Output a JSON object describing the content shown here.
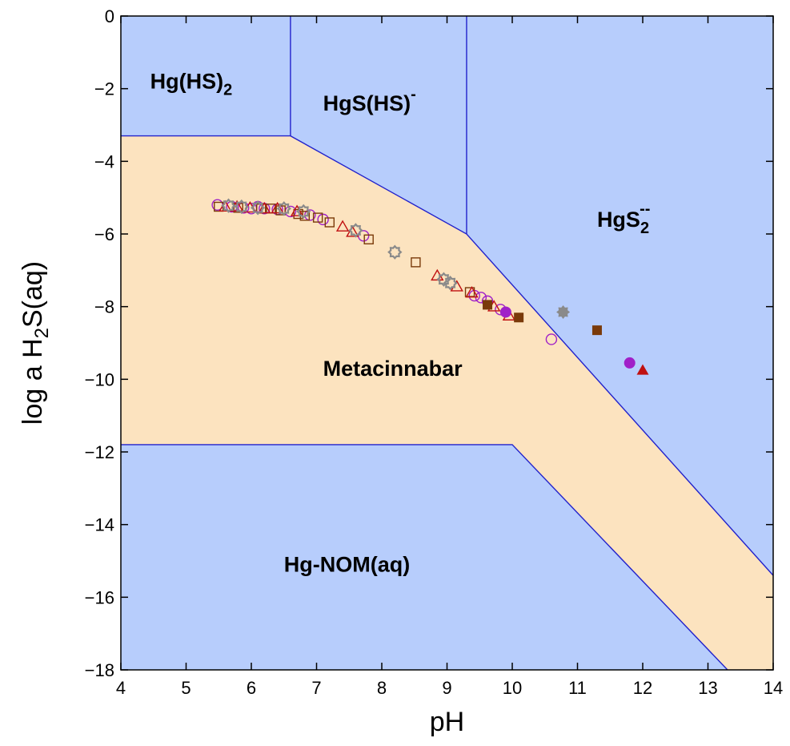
{
  "chart_data": {
    "type": "scatter",
    "xlabel": "pH",
    "ylabel": {
      "pre": "log a H",
      "sub": "2",
      "post": "S(aq)"
    },
    "xlim": [
      4,
      14
    ],
    "ylim": [
      -18,
      0
    ],
    "xticks": [
      4,
      5,
      6,
      7,
      8,
      9,
      10,
      11,
      12,
      13,
      14
    ],
    "yticks": [
      0,
      -2,
      -4,
      -6,
      -8,
      -10,
      -12,
      -14,
      -16,
      -18
    ],
    "tick_labels_x": [
      "4",
      "5",
      "6",
      "7",
      "8",
      "9",
      "10",
      "11",
      "12",
      "13",
      "14"
    ],
    "tick_labels_y": [
      "0",
      "−2",
      "−4",
      "−6",
      "−8",
      "−10",
      "−12",
      "−14",
      "−16",
      "−18"
    ],
    "colors": {
      "aqueous": "#b7cdfc",
      "solid": "#fce3bf",
      "boundary": "#2222cc",
      "gray": "#8a8a8a",
      "brown": "#7a3a0a",
      "magenta": "#a020c8",
      "red": "#c01010"
    },
    "regions": [
      {
        "name": "Hg(HS)2",
        "label": "Hg(HS)",
        "sub": "2",
        "sup": "",
        "kind": "aqueous",
        "label_at": [
          4.45,
          -2.0
        ],
        "polygon": [
          [
            4,
            0
          ],
          [
            6.6,
            0
          ],
          [
            6.6,
            -3.3
          ],
          [
            4,
            -3.3
          ]
        ]
      },
      {
        "name": "HgS(HS)-",
        "label": "HgS(HS)",
        "sub": "",
        "sup": "-",
        "kind": "aqueous",
        "label_at": [
          7.1,
          -2.6
        ],
        "polygon": [
          [
            6.6,
            0
          ],
          [
            9.3,
            0
          ],
          [
            9.3,
            -6.0
          ],
          [
            6.6,
            -3.3
          ]
        ]
      },
      {
        "name": "HgS2--",
        "label": "HgS",
        "sub": "2",
        "sup": "--",
        "kind": "aqueous",
        "label_at": [
          11.3,
          -5.8
        ],
        "polygon": [
          [
            9.3,
            0
          ],
          [
            14,
            0
          ],
          [
            14,
            -15.4
          ],
          [
            9.3,
            -6.0
          ]
        ]
      },
      {
        "name": "Metacinnabar",
        "label": "Metacinnabar",
        "sub": "",
        "sup": "",
        "kind": "solid",
        "label_at": [
          7.1,
          -9.9
        ],
        "polygon": [
          [
            4,
            -3.3
          ],
          [
            6.6,
            -3.3
          ],
          [
            9.3,
            -6.0
          ],
          [
            14,
            -15.4
          ],
          [
            14,
            -18
          ],
          [
            13.3,
            -18
          ],
          [
            10.0,
            -11.8
          ],
          [
            4,
            -11.8
          ]
        ]
      },
      {
        "name": "Hg-NOM(aq)",
        "label": "Hg-NOM(aq)",
        "sub": "",
        "sup": "",
        "kind": "aqueous",
        "label_at": [
          6.5,
          -15.3
        ],
        "polygon": [
          [
            4,
            -11.8
          ],
          [
            10.0,
            -11.8
          ],
          [
            13.3,
            -18
          ],
          [
            4,
            -18
          ]
        ]
      }
    ],
    "boundaries": [
      [
        [
          4,
          -3.3
        ],
        [
          6.6,
          -3.3
        ],
        [
          9.3,
          -6.0
        ],
        [
          14,
          -15.4
        ]
      ],
      [
        [
          6.6,
          0
        ],
        [
          6.6,
          -3.3
        ]
      ],
      [
        [
          9.3,
          0
        ],
        [
          9.3,
          -6.0
        ]
      ],
      [
        [
          4,
          -11.8
        ],
        [
          10.0,
          -11.8
        ],
        [
          13.3,
          -18
        ]
      ]
    ],
    "series": [
      {
        "marker": "circle",
        "filled": false,
        "color": "magenta",
        "points": [
          [
            5.48,
            -5.2
          ],
          [
            5.7,
            -5.25
          ],
          [
            5.88,
            -5.28
          ],
          [
            6.0,
            -5.3
          ],
          [
            6.1,
            -5.25
          ],
          [
            6.2,
            -5.3
          ],
          [
            6.4,
            -5.32
          ],
          [
            6.6,
            -5.38
          ],
          [
            6.9,
            -5.48
          ],
          [
            7.1,
            -5.6
          ],
          [
            7.72,
            -6.05
          ],
          [
            9.42,
            -7.7
          ],
          [
            9.52,
            -7.75
          ],
          [
            9.62,
            -7.85
          ],
          [
            9.82,
            -8.08
          ],
          [
            10.6,
            -8.9
          ]
        ]
      },
      {
        "marker": "square",
        "filled": false,
        "color": "brown",
        "points": [
          [
            5.5,
            -5.25
          ],
          [
            5.8,
            -5.28
          ],
          [
            6.15,
            -5.3
          ],
          [
            6.3,
            -5.3
          ],
          [
            6.45,
            -5.35
          ],
          [
            6.72,
            -5.45
          ],
          [
            6.82,
            -5.5
          ],
          [
            7.02,
            -5.55
          ],
          [
            7.2,
            -5.68
          ],
          [
            7.8,
            -6.15
          ],
          [
            8.52,
            -6.78
          ],
          [
            9.35,
            -7.6
          ]
        ]
      },
      {
        "marker": "triangle",
        "filled": false,
        "color": "red",
        "points": [
          [
            5.6,
            -5.25
          ],
          [
            5.78,
            -5.25
          ],
          [
            5.98,
            -5.28
          ],
          [
            6.2,
            -5.3
          ],
          [
            6.4,
            -5.3
          ],
          [
            6.7,
            -5.38
          ],
          [
            7.4,
            -5.8
          ],
          [
            7.55,
            -5.95
          ],
          [
            8.85,
            -7.15
          ],
          [
            9.15,
            -7.45
          ],
          [
            9.38,
            -7.62
          ],
          [
            9.72,
            -8.0
          ],
          [
            9.95,
            -8.25
          ]
        ]
      },
      {
        "marker": "gear",
        "filled": false,
        "color": "gray",
        "points": [
          [
            5.65,
            -5.22
          ],
          [
            5.85,
            -5.25
          ],
          [
            6.1,
            -5.28
          ],
          [
            6.5,
            -5.3
          ],
          [
            6.8,
            -5.38
          ],
          [
            7.6,
            -5.9
          ],
          [
            8.2,
            -6.5
          ],
          [
            8.95,
            -7.25
          ],
          [
            9.05,
            -7.35
          ]
        ]
      },
      {
        "marker": "circle",
        "filled": true,
        "color": "magenta",
        "points": [
          [
            9.9,
            -8.15
          ],
          [
            11.8,
            -9.55
          ]
        ]
      },
      {
        "marker": "square",
        "filled": true,
        "color": "brown",
        "points": [
          [
            9.62,
            -7.95
          ],
          [
            10.1,
            -8.3
          ],
          [
            11.3,
            -8.65
          ]
        ]
      },
      {
        "marker": "triangle",
        "filled": true,
        "color": "red",
        "points": [
          [
            12.0,
            -9.75
          ]
        ]
      },
      {
        "marker": "gear",
        "filled": true,
        "color": "gray",
        "points": [
          [
            10.78,
            -8.15
          ]
        ]
      }
    ]
  }
}
